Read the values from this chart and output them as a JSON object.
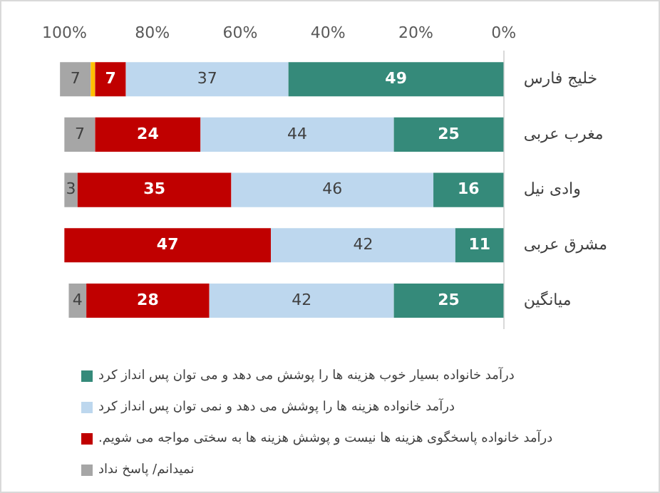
{
  "chart_data": {
    "type": "bar",
    "orientation": "horizontal",
    "stacked": true,
    "categories": [
      "خلیج فارس",
      "مغرب عربی",
      "وادی نیل",
      "مشرق عربی",
      "میانگین"
    ],
    "series": [
      {
        "name": "درآمد خانواده بسیار خوب هزینه ها را پوشش می دهد و می توان پس انداز کرد",
        "color": "#358a7a",
        "values": [
          49,
          25,
          16,
          11,
          25
        ],
        "value_labels": [
          "49",
          "25",
          "16",
          "11",
          "25"
        ]
      },
      {
        "name": "درآمد خانواده هزینه ها را پوشش می دهد و نمی توان پس انداز کرد",
        "color": "#bdd7ee",
        "values": [
          37,
          44,
          46,
          42,
          42
        ],
        "value_labels": [
          "37",
          "44",
          "46",
          "42",
          "42"
        ]
      },
      {
        "name": "درآمد خانواده پاسخگوی هزینه ها نیست و پوشش هزینه ها به سختی مواجه می شویم.",
        "color": "#c00000",
        "values": [
          7,
          24,
          35,
          47,
          28
        ],
        "value_labels": [
          "7",
          "24",
          "35",
          "47",
          "28"
        ]
      },
      {
        "color": "#ffc000",
        "values": [
          1,
          null,
          null,
          null,
          null
        ]
      },
      {
        "name": "نمیدانم/ پاسخ نداد",
        "color": "#a6a6a6",
        "values": [
          7,
          7,
          3,
          null,
          4
        ],
        "value_labels": [
          "7",
          "7",
          "3",
          null,
          "4"
        ]
      }
    ],
    "xlim": [
      102,
      0
    ],
    "xticks": [
      {
        "value": 0,
        "label": "0%"
      },
      {
        "value": 20,
        "label": "20%"
      },
      {
        "value": 40,
        "label": "40%"
      },
      {
        "value": 60,
        "label": "60%"
      },
      {
        "value": 80,
        "label": "80%"
      },
      {
        "value": 100,
        "label": "100%"
      }
    ],
    "grid": false,
    "legend": "bottom"
  }
}
